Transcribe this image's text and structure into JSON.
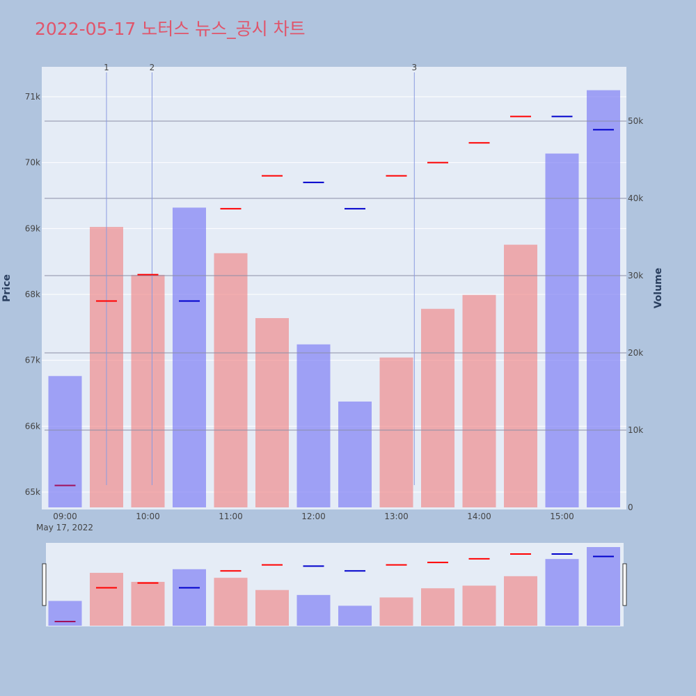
{
  "title": "2022-05-17 노터스 뉴스_공시 차트",
  "colors": {
    "background": "#b0c4de",
    "plot_bg": "#e5ecf6",
    "up_bar": "#f08080",
    "down_bar": "#8080f5",
    "up_tick": "#ff0000",
    "down_tick": "#0000cc",
    "annotation_line": "#8a9ae0",
    "volume_grid": "#8a8ea6",
    "title": "#e0556b"
  },
  "chart_data": {
    "type": "bar",
    "title": "2022-05-17 노터스 뉴스_공시 차트",
    "x_ticks": [
      "09:00",
      "10:00",
      "11:00",
      "12:00",
      "13:00",
      "14:00",
      "15:00"
    ],
    "x_date_label": "May 17, 2022",
    "y_left": {
      "label": "Price",
      "ticks": [
        "65k",
        "66k",
        "67k",
        "68k",
        "69k",
        "70k",
        "71k"
      ],
      "range": [
        64770,
        71460
      ]
    },
    "y_right": {
      "label": "Volume",
      "ticks": [
        "0",
        "10k",
        "20k",
        "30k",
        "40k",
        "50k"
      ],
      "range": [
        0,
        55000
      ]
    },
    "series": [
      {
        "name": "Volume",
        "type": "bar",
        "x": [
          "09:00",
          "09:30",
          "10:00",
          "10:30",
          "11:00",
          "11:30",
          "12:00",
          "12:30",
          "13:00",
          "13:30",
          "14:00",
          "14:30",
          "15:00",
          "15:30"
        ],
        "values": [
          17000,
          36300,
          30100,
          38800,
          32900,
          24500,
          21100,
          13700,
          19400,
          25700,
          27500,
          34000,
          45800,
          54000
        ],
        "direction": [
          "down",
          "up",
          "up",
          "down",
          "up",
          "up",
          "down",
          "down",
          "up",
          "up",
          "up",
          "up",
          "down",
          "down"
        ]
      },
      {
        "name": "Price",
        "type": "tick",
        "x": [
          "09:00",
          "09:30",
          "10:00",
          "10:30",
          "11:00",
          "11:30",
          "12:00",
          "12:30",
          "13:00",
          "13:30",
          "14:00",
          "14:30",
          "15:00",
          "15:30"
        ],
        "values": [
          65100,
          67900,
          68300,
          67900,
          69300,
          69800,
          69700,
          69300,
          69800,
          70000,
          70300,
          70700,
          70700,
          70500
        ]
      }
    ],
    "annotations": [
      {
        "label": "1",
        "x": "09:30"
      },
      {
        "label": "2",
        "x": "10:03"
      },
      {
        "label": "3",
        "x": "13:13"
      }
    ],
    "grid": true,
    "range_slider": true
  }
}
